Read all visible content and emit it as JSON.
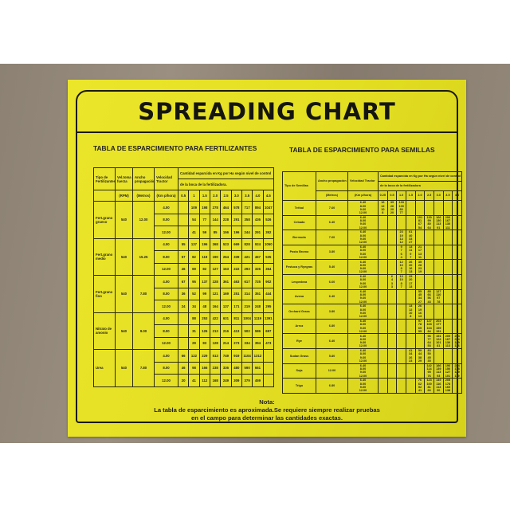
{
  "title": "SPREADING CHART",
  "fertilizer": {
    "heading": "TABLA DE ESPARCIMIENTO PARA FERTILIZANTES",
    "headers": {
      "type": "Tipo de Fertilizantes",
      "rpm": "Vel.toma fuerza",
      "ancho": "Ancho propagación",
      "vel": "Velocidad Tractor",
      "amount_1": "Cantidad esparcida en Kg por Ha según nivel de control",
      "amount_2": "de la boca de la fertilizadora."
    },
    "units": {
      "rpm": "(RPM)",
      "ancho": "(Metros)",
      "vel": "(Km p/hora)"
    },
    "levels": [
      "0.5",
      "1",
      "1.5",
      "2.0",
      "2.5",
      "3.0",
      "3.5",
      "4.0",
      "4.5"
    ],
    "rows": [
      {
        "name": "Fert.grano grueso",
        "rpm": "540",
        "ancho": "12.00",
        "speeds": [
          {
            "v": "4.00",
            "vals": [
              "",
              "109",
              "198",
              "278",
              "464",
              "578",
              "717",
              "894",
              "1047"
            ]
          },
          {
            "v": "8.00",
            "vals": [
              "",
              "54",
              "77",
              "144",
              "228",
              "291",
              "358",
              "436",
              "526"
            ]
          },
          {
            "v": "12.00",
            "vals": [
              "",
              "41",
              "59",
              "85",
              "156",
              "196",
              "244",
              "291",
              "352"
            ]
          }
        ]
      },
      {
        "name": "Fert.grano medio",
        "rpm": "540",
        "ancho": "15.25",
        "speeds": [
          {
            "v": "4.00",
            "vals": [
              "55",
              "137",
              "196",
              "368",
              "523",
              "669",
              "828",
              "924",
              "1050"
            ]
          },
          {
            "v": "8.00",
            "vals": [
              "57",
              "82",
              "119",
              "190",
              "264",
              "339",
              "421",
              "467",
              "535"
            ]
          },
          {
            "v": "12.00",
            "vals": [
              "46",
              "69",
              "82",
              "127",
              "163",
              "222",
              "293",
              "326",
              "364"
            ]
          }
        ]
      },
      {
        "name": "Fert.grano fino",
        "rpm": "540",
        "ancho": "7.80",
        "speeds": [
          {
            "v": "4.00",
            "vals": [
              "67",
              "95",
              "137",
              "228",
              "361",
              "463",
              "617",
              "725",
              "902"
            ]
          },
          {
            "v": "8.00",
            "vals": [
              "36",
              "52",
              "99",
              "121",
              "169",
              "251",
              "314",
              "351",
              "444"
            ]
          },
          {
            "v": "12.00",
            "vals": [
              "24",
              "34",
              "48",
              "164",
              "137",
              "171",
              "219",
              "248",
              "295"
            ]
          }
        ]
      },
      {
        "name": "Nitrato de amonio",
        "rpm": "540",
        "ancho": "9.00",
        "speeds": [
          {
            "v": "4.00",
            "vals": [
              "",
              "88",
              "253",
              "422",
              "631",
              "811",
              "1004",
              "1119",
              "1391"
            ]
          },
          {
            "v": "8.00",
            "vals": [
              "",
              "31",
              "126",
              "213",
              "216",
              "413",
              "502",
              "586",
              "697"
            ]
          },
          {
            "v": "12.00",
            "vals": [
              "",
              "29",
              "83",
              "128",
              "214",
              "273",
              "334",
              "394",
              "473"
            ]
          }
        ]
      },
      {
        "name": "Urea",
        "rpm": "540",
        "ancho": "7.80",
        "speeds": [
          {
            "v": "4.00",
            "vals": [
              "66",
              "122",
              "229",
              "513",
              "749",
              "919",
              "1104",
              "1312",
              ""
            ]
          },
          {
            "v": "8.00",
            "vals": [
              "46",
              "98",
              "166",
              "238",
              "336",
              "480",
              "590",
              "661",
              ""
            ]
          },
          {
            "v": "12.00",
            "vals": [
              "20",
              "41",
              "112",
              "168",
              "249",
              "309",
              "379",
              "459",
              ""
            ]
          }
        ]
      }
    ]
  },
  "seeds": {
    "heading": "TABLA DE ESPARCIMIENTO PARA SEMILLAS",
    "headers": {
      "type": "Tipo de Semillas",
      "ancho": "Ancho propagación",
      "vel": "Velocidad Tractor",
      "amount_1": "Cantidad esparcida en Kg por Ha según nivel de control",
      "amount_2": "de la boca de la fertilizadora"
    },
    "units": {
      "ancho": "(Metros)",
      "vel": "(Km p/hora)"
    },
    "levels": [
      "0.25",
      "0.5",
      "1.0",
      "1.5",
      "2.0",
      "2.5",
      "3.0",
      "3.5",
      "4.0"
    ],
    "speeds": [
      "6.40",
      "8.00",
      "9.60",
      "12.00"
    ],
    "rows": [
      {
        "name": "Trébol",
        "ancho": "7.60",
        "cols": {
          "0": [
            "16",
            "12",
            "10",
            "8"
          ],
          "1": [
            "39",
            "26",
            "20",
            "20"
          ],
          "2": [
            "133",
            "100",
            "80",
            "77"
          ]
        }
      },
      {
        "name": "Cebada",
        "ancho": "6.40",
        "cols": {
          "4": [
            "101",
            "81",
            "67",
            "54"
          ],
          "5": [
            "130",
            "99",
            "80",
            "64"
          ],
          "6": [
            "166",
            "130",
            "113",
            "91"
          ],
          "7": [
            "206",
            "167",
            "130",
            "111"
          ]
        }
      },
      {
        "name": "Bermuda",
        "ancho": "7.60",
        "cols": {
          "2": [
            "23",
            "19",
            "14",
            "12"
          ],
          "3": [
            "61",
            "40",
            "33",
            "27"
          ]
        }
      },
      {
        "name": "Pasto Bromo",
        "ancho": "3.80",
        "cols": {
          "2": [
            "9",
            "7",
            "6",
            "4"
          ],
          "3": [
            "13",
            "11",
            "9",
            "7"
          ],
          "4": [
            "21",
            "17",
            "13",
            "11"
          ]
        }
      },
      {
        "name": "Festuca y Ryegras",
        "ancho": "5.40",
        "cols": {
          "2": [
            "12",
            "10",
            "8",
            "7"
          ],
          "3": [
            "26",
            "20",
            "16",
            "13"
          ],
          "4": [
            "35",
            "28",
            "23",
            "19"
          ]
        }
      },
      {
        "name": "Lespedeza",
        "ancho": "6.60",
        "cols": {
          "1": [
            "6",
            "4",
            "3",
            "3"
          ],
          "2": [
            "13",
            "10",
            "8",
            "7"
          ],
          "3": [
            "25",
            "20",
            "17",
            "13"
          ]
        }
      },
      {
        "name": "Avena",
        "ancho": "6.40",
        "cols": {
          "4": [
            "55",
            "45",
            "34",
            "27"
          ],
          "5": [
            "85",
            "66",
            "56",
            "43"
          ],
          "6": [
            "127",
            "110",
            "97",
            "78"
          ]
        }
      },
      {
        "name": "Orchard Grass",
        "ancho": "3.80",
        "cols": {
          "3": [
            "13",
            "12",
            "10",
            "8"
          ],
          "4": [
            "26",
            "19",
            "16",
            "13"
          ]
        }
      },
      {
        "name": "Arroz",
        "ancho": "6.80",
        "cols": {
          "4": [
            "97",
            "78",
            "65",
            "55"
          ],
          "5": [
            "127",
            "103",
            "104",
            "84"
          ],
          "6": [
            "203",
            "177",
            "159",
            "151"
          ]
        }
      },
      {
        "name": "Rye",
        "ancho": "6.40",
        "cols": {
          "5": [
            "96",
            "77",
            "64",
            "53"
          ],
          "6": [
            "151",
            "122",
            "101",
            "81"
          ],
          "7": [
            "209",
            "167",
            "130",
            "113"
          ],
          "8": [
            "264",
            "204",
            "169",
            "136"
          ]
        }
      },
      {
        "name": "Sudan Grass",
        "ancho": "5.80",
        "cols": {
          "3": [
            "41",
            "34",
            "26",
            "23"
          ],
          "4": [
            "59",
            "44",
            "38",
            "29"
          ],
          "5": [
            "83",
            "50",
            "45",
            "35"
          ]
        }
      },
      {
        "name": "Soja",
        "ancho": "12.00",
        "cols": {
          "5": [
            "142",
            "114",
            "95",
            "76"
          ],
          "6": [
            "186",
            "139",
            "113",
            "93"
          ],
          "7": [
            "196",
            "150",
            "127",
            "101"
          ],
          "8": [
            "224",
            "178",
            "149",
            "119"
          ]
        }
      },
      {
        "name": "Trigo",
        "ancho": "6.80",
        "cols": {
          "4": [
            "76",
            "62",
            "52",
            "41"
          ],
          "5": [
            "123",
            "100",
            "81",
            "66"
          ],
          "6": [
            "149",
            "116",
            "113",
            "90"
          ],
          "7": [
            "205",
            "178",
            "160",
            "138"
          ]
        }
      }
    ]
  },
  "note": {
    "label": "Nota:",
    "line1": "La tabla de esparcimiento es aproximada.Se requiere siempre realizar pruebas",
    "line2": "en el campo para determinar las cantidades exactas."
  },
  "colors": {
    "sticker": "#e4df22",
    "ink": "#1a1a10",
    "background": "#8c8173"
  }
}
